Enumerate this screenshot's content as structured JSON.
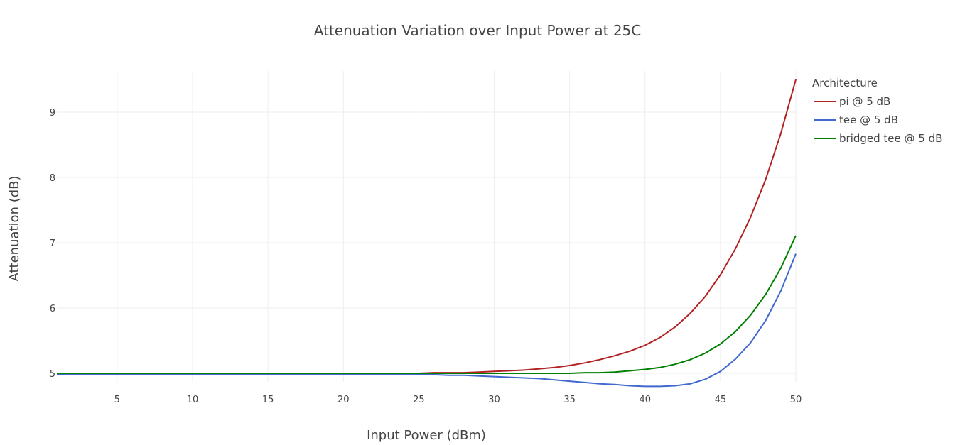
{
  "chart_data": {
    "type": "line",
    "title": "Attenuation Variation over Input Power at 25C",
    "xlabel": "Input Power (dBm)",
    "ylabel": "Attenuation (dB)",
    "xlim": [
      1,
      50
    ],
    "ylim": [
      4.87,
      9.63
    ],
    "xticks": [
      5,
      10,
      15,
      20,
      25,
      30,
      35,
      40,
      45,
      50
    ],
    "yticks": [
      5,
      6,
      7,
      8,
      9
    ],
    "grid": true,
    "legend": {
      "title": "Architecture",
      "position": "top-right-outside"
    },
    "x": [
      1,
      2,
      3,
      4,
      5,
      6,
      7,
      8,
      9,
      10,
      11,
      12,
      13,
      14,
      15,
      16,
      17,
      18,
      19,
      20,
      21,
      22,
      23,
      24,
      25,
      26,
      27,
      28,
      29,
      30,
      31,
      32,
      33,
      34,
      35,
      36,
      37,
      38,
      39,
      40,
      41,
      42,
      43,
      44,
      45,
      46,
      47,
      48,
      49,
      50
    ],
    "series": [
      {
        "name": "pi @ 5 dB",
        "color": "#b22222",
        "values": [
          5.0,
          5.0,
          5.0,
          5.0,
          5.0,
          5.0,
          5.0,
          5.0,
          5.0,
          5.0,
          5.0,
          5.0,
          5.0,
          5.0,
          5.0,
          5.0,
          5.0,
          5.0,
          5.0,
          5.0,
          5.0,
          5.0,
          5.0,
          5.0,
          5.0,
          5.01,
          5.01,
          5.01,
          5.02,
          5.03,
          5.04,
          5.05,
          5.07,
          5.09,
          5.12,
          5.16,
          5.21,
          5.27,
          5.34,
          5.43,
          5.55,
          5.71,
          5.92,
          6.18,
          6.51,
          6.91,
          7.39,
          7.97,
          8.67,
          9.5
        ]
      },
      {
        "name": "tee @ 5 dB",
        "color": "#4169cf",
        "values": [
          4.99,
          4.99,
          4.99,
          4.99,
          4.99,
          4.99,
          4.99,
          4.99,
          4.99,
          4.99,
          4.99,
          4.99,
          4.99,
          4.99,
          4.99,
          4.99,
          4.99,
          4.99,
          4.99,
          4.99,
          4.99,
          4.99,
          4.99,
          4.99,
          4.98,
          4.98,
          4.97,
          4.97,
          4.96,
          4.95,
          4.94,
          4.93,
          4.92,
          4.9,
          4.88,
          4.86,
          4.84,
          4.83,
          4.81,
          4.8,
          4.8,
          4.81,
          4.84,
          4.91,
          5.03,
          5.22,
          5.47,
          5.81,
          6.26,
          6.83
        ]
      },
      {
        "name": "bridged tee @ 5 dB",
        "color": "#008000",
        "values": [
          5.0,
          5.0,
          5.0,
          5.0,
          5.0,
          5.0,
          5.0,
          5.0,
          5.0,
          5.0,
          5.0,
          5.0,
          5.0,
          5.0,
          5.0,
          5.0,
          5.0,
          5.0,
          5.0,
          5.0,
          5.0,
          5.0,
          5.0,
          5.0,
          5.0,
          5.0,
          5.0,
          5.0,
          5.0,
          5.0,
          5.0,
          5.0,
          5.0,
          5.0,
          5.0,
          5.01,
          5.01,
          5.02,
          5.04,
          5.06,
          5.09,
          5.14,
          5.21,
          5.31,
          5.45,
          5.64,
          5.89,
          6.21,
          6.61,
          7.11
        ]
      }
    ]
  }
}
